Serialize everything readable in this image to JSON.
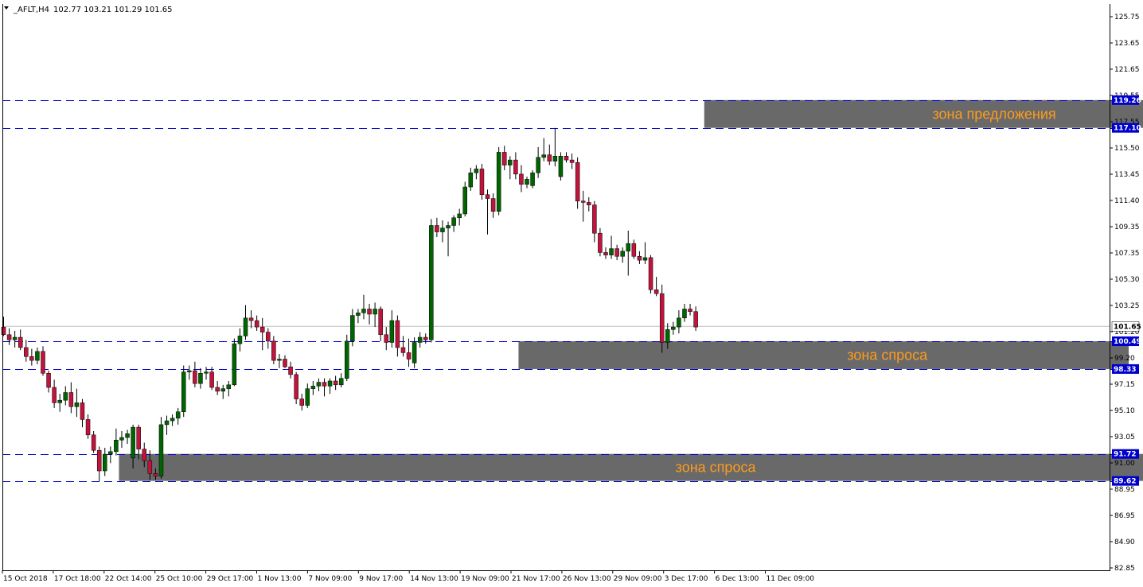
{
  "header": {
    "symbol": "_AFLT,H4",
    "ohlc": "102.77 103.21 101.29 101.65"
  },
  "colors": {
    "bull": "#006400",
    "bear": "#c0143c",
    "level": "#0000cd",
    "zone": "#696969",
    "zone_text": "#ff9c1a",
    "badge": "#0000cd",
    "axis": "#000000"
  },
  "chart_data": {
    "type": "candlestick",
    "title": "",
    "ylim": [
      82.85,
      125.75
    ],
    "y_ticks": [
      "125.75",
      "123.65",
      "121.65",
      "119.55",
      "117.55",
      "115.50",
      "113.45",
      "111.40",
      "109.35",
      "107.35",
      "105.30",
      "103.25",
      "101.20",
      "99.20",
      "97.15",
      "95.10",
      "93.05",
      "91.00",
      "88.95",
      "86.95",
      "84.90",
      "82.85"
    ],
    "x_ticks": [
      "15 Oct 2018",
      "17 Oct 18:00",
      "22 Oct 14:00",
      "25 Oct 10:00",
      "29 Oct 17:00",
      "1 Nov 13:00",
      "7 Nov 09:00",
      "9 Nov 17:00",
      "14 Nov 13:00",
      "19 Nov 09:00",
      "21 Nov 17:00",
      "26 Nov 13:00",
      "29 Nov 09:00",
      "3 Dec 17:00",
      "6 Dec 13:00",
      "11 Dec 09:00"
    ],
    "levels": [
      {
        "value": 119.26,
        "label": "119.26"
      },
      {
        "value": 117.1,
        "label": "117.10"
      },
      {
        "value": 100.49,
        "label": "100.49"
      },
      {
        "value": 98.33,
        "label": "98.33"
      },
      {
        "value": 91.72,
        "label": "91.72"
      },
      {
        "value": 89.62,
        "label": "89.62"
      }
    ],
    "current_price": {
      "value": 101.65,
      "label": "101.65"
    },
    "zones": [
      {
        "name": "supply",
        "label": "зона предложения",
        "top": 119.26,
        "bottom": 117.1,
        "start_index": 125,
        "end_index": 205
      },
      {
        "name": "demand-upper",
        "label": "зона спроса",
        "top": 100.49,
        "bottom": 98.33,
        "start_index": 92,
        "end_index": 200
      },
      {
        "name": "demand-lower",
        "label": "зона спроса",
        "top": 91.72,
        "bottom": 89.62,
        "start_index": 21,
        "end_index": 210
      }
    ],
    "candles": [
      {
        "o": 101.6,
        "h": 102.4,
        "l": 100.9,
        "c": 101.0
      },
      {
        "o": 101.0,
        "h": 101.5,
        "l": 100.2,
        "c": 100.6
      },
      {
        "o": 100.6,
        "h": 101.3,
        "l": 100.0,
        "c": 100.8
      },
      {
        "o": 100.8,
        "h": 101.4,
        "l": 99.8,
        "c": 100.0
      },
      {
        "o": 100.0,
        "h": 100.6,
        "l": 98.9,
        "c": 99.3
      },
      {
        "o": 99.3,
        "h": 99.9,
        "l": 98.6,
        "c": 99.0
      },
      {
        "o": 99.0,
        "h": 100.0,
        "l": 98.7,
        "c": 99.7
      },
      {
        "o": 99.7,
        "h": 100.1,
        "l": 97.8,
        "c": 98.0
      },
      {
        "o": 98.0,
        "h": 98.2,
        "l": 96.5,
        "c": 96.9
      },
      {
        "o": 96.9,
        "h": 97.5,
        "l": 95.3,
        "c": 95.7
      },
      {
        "o": 95.7,
        "h": 96.4,
        "l": 95.0,
        "c": 95.9
      },
      {
        "o": 95.9,
        "h": 97.0,
        "l": 95.5,
        "c": 96.5
      },
      {
        "o": 96.5,
        "h": 97.3,
        "l": 94.9,
        "c": 95.4
      },
      {
        "o": 95.4,
        "h": 96.8,
        "l": 94.6,
        "c": 95.7
      },
      {
        "o": 95.7,
        "h": 96.0,
        "l": 93.8,
        "c": 94.4
      },
      {
        "o": 94.4,
        "h": 94.8,
        "l": 92.9,
        "c": 93.2
      },
      {
        "o": 93.2,
        "h": 93.5,
        "l": 91.8,
        "c": 92.0
      },
      {
        "o": 92.0,
        "h": 92.3,
        "l": 89.6,
        "c": 90.4
      },
      {
        "o": 90.4,
        "h": 92.2,
        "l": 90.0,
        "c": 91.7
      },
      {
        "o": 91.7,
        "h": 92.3,
        "l": 91.0,
        "c": 91.9
      },
      {
        "o": 91.9,
        "h": 93.7,
        "l": 91.6,
        "c": 92.8
      },
      {
        "o": 92.8,
        "h": 93.5,
        "l": 92.2,
        "c": 93.0
      },
      {
        "o": 93.0,
        "h": 93.6,
        "l": 92.5,
        "c": 93.3
      },
      {
        "o": 91.4,
        "h": 94.0,
        "l": 90.6,
        "c": 93.8
      },
      {
        "o": 93.8,
        "h": 94.0,
        "l": 91.3,
        "c": 92.1
      },
      {
        "o": 92.1,
        "h": 92.6,
        "l": 90.7,
        "c": 91.2
      },
      {
        "o": 91.2,
        "h": 92.0,
        "l": 89.7,
        "c": 90.2
      },
      {
        "o": 90.2,
        "h": 90.6,
        "l": 89.7,
        "c": 90.0
      },
      {
        "o": 90.0,
        "h": 94.6,
        "l": 89.8,
        "c": 94.0
      },
      {
        "o": 94.0,
        "h": 94.7,
        "l": 93.2,
        "c": 94.3
      },
      {
        "o": 94.3,
        "h": 94.8,
        "l": 93.9,
        "c": 94.5
      },
      {
        "o": 94.5,
        "h": 95.3,
        "l": 94.0,
        "c": 95.0
      },
      {
        "o": 95.0,
        "h": 98.6,
        "l": 94.6,
        "c": 98.1
      },
      {
        "o": 98.1,
        "h": 98.6,
        "l": 97.5,
        "c": 98.2
      },
      {
        "o": 98.2,
        "h": 98.9,
        "l": 96.9,
        "c": 97.2
      },
      {
        "o": 97.2,
        "h": 98.4,
        "l": 96.8,
        "c": 98.0
      },
      {
        "o": 98.0,
        "h": 98.5,
        "l": 97.5,
        "c": 98.1
      },
      {
        "o": 98.1,
        "h": 98.5,
        "l": 96.7,
        "c": 96.9
      },
      {
        "o": 96.9,
        "h": 97.4,
        "l": 96.3,
        "c": 96.6
      },
      {
        "o": 96.6,
        "h": 97.1,
        "l": 96.0,
        "c": 96.8
      },
      {
        "o": 96.8,
        "h": 97.4,
        "l": 96.2,
        "c": 97.1
      },
      {
        "o": 97.1,
        "h": 100.7,
        "l": 97.0,
        "c": 100.3
      },
      {
        "o": 100.3,
        "h": 101.5,
        "l": 99.7,
        "c": 100.9
      },
      {
        "o": 100.9,
        "h": 103.3,
        "l": 100.6,
        "c": 102.3
      },
      {
        "o": 102.3,
        "h": 102.9,
        "l": 101.5,
        "c": 102.1
      },
      {
        "o": 102.1,
        "h": 102.5,
        "l": 101.3,
        "c": 101.6
      },
      {
        "o": 101.6,
        "h": 102.3,
        "l": 99.8,
        "c": 101.2
      },
      {
        "o": 101.2,
        "h": 101.5,
        "l": 99.9,
        "c": 100.5
      },
      {
        "o": 100.5,
        "h": 100.9,
        "l": 98.7,
        "c": 99.0
      },
      {
        "o": 99.0,
        "h": 99.5,
        "l": 98.4,
        "c": 99.1
      },
      {
        "o": 99.1,
        "h": 99.4,
        "l": 98.4,
        "c": 98.5
      },
      {
        "o": 98.5,
        "h": 98.9,
        "l": 97.6,
        "c": 97.9
      },
      {
        "o": 97.9,
        "h": 98.1,
        "l": 95.6,
        "c": 96.0
      },
      {
        "o": 96.0,
        "h": 96.4,
        "l": 95.1,
        "c": 95.5
      },
      {
        "o": 95.5,
        "h": 97.2,
        "l": 95.3,
        "c": 96.8
      },
      {
        "o": 96.8,
        "h": 97.4,
        "l": 96.3,
        "c": 97.0
      },
      {
        "o": 97.0,
        "h": 97.6,
        "l": 96.6,
        "c": 97.3
      },
      {
        "o": 97.3,
        "h": 97.6,
        "l": 96.2,
        "c": 97.0
      },
      {
        "o": 97.0,
        "h": 97.6,
        "l": 96.4,
        "c": 97.4
      },
      {
        "o": 97.4,
        "h": 97.8,
        "l": 96.7,
        "c": 97.1
      },
      {
        "o": 97.1,
        "h": 98.0,
        "l": 96.9,
        "c": 97.6
      },
      {
        "o": 97.6,
        "h": 101.0,
        "l": 97.4,
        "c": 100.5
      },
      {
        "o": 100.5,
        "h": 103.0,
        "l": 100.1,
        "c": 102.5
      },
      {
        "o": 102.5,
        "h": 103.0,
        "l": 101.9,
        "c": 102.7
      },
      {
        "o": 102.7,
        "h": 104.1,
        "l": 102.2,
        "c": 103.0
      },
      {
        "o": 103.0,
        "h": 103.4,
        "l": 101.8,
        "c": 102.6
      },
      {
        "o": 102.6,
        "h": 103.5,
        "l": 101.6,
        "c": 103.0
      },
      {
        "o": 103.0,
        "h": 103.2,
        "l": 100.5,
        "c": 101.0
      },
      {
        "o": 101.0,
        "h": 101.6,
        "l": 99.8,
        "c": 100.4
      },
      {
        "o": 100.4,
        "h": 102.9,
        "l": 100.0,
        "c": 102.1
      },
      {
        "o": 102.1,
        "h": 102.5,
        "l": 99.3,
        "c": 100.0
      },
      {
        "o": 100.0,
        "h": 100.9,
        "l": 99.3,
        "c": 99.6
      },
      {
        "o": 99.6,
        "h": 100.7,
        "l": 98.5,
        "c": 99.1
      },
      {
        "o": 98.8,
        "h": 100.8,
        "l": 98.4,
        "c": 100.4
      },
      {
        "o": 100.4,
        "h": 101.2,
        "l": 100.0,
        "c": 100.8
      },
      {
        "o": 100.8,
        "h": 101.1,
        "l": 100.3,
        "c": 100.6
      },
      {
        "o": 100.6,
        "h": 110.0,
        "l": 100.4,
        "c": 109.5
      },
      {
        "o": 109.5,
        "h": 110.1,
        "l": 108.6,
        "c": 109.0
      },
      {
        "o": 109.0,
        "h": 109.9,
        "l": 108.2,
        "c": 109.3
      },
      {
        "o": 109.3,
        "h": 109.8,
        "l": 107.1,
        "c": 109.5
      },
      {
        "o": 109.5,
        "h": 110.3,
        "l": 109.0,
        "c": 110.1
      },
      {
        "o": 110.1,
        "h": 110.8,
        "l": 109.5,
        "c": 110.4
      },
      {
        "o": 110.4,
        "h": 112.9,
        "l": 110.2,
        "c": 112.5
      },
      {
        "o": 112.5,
        "h": 114.0,
        "l": 112.2,
        "c": 113.6
      },
      {
        "o": 113.6,
        "h": 114.2,
        "l": 113.1,
        "c": 113.9
      },
      {
        "o": 113.9,
        "h": 114.3,
        "l": 111.5,
        "c": 111.9
      },
      {
        "o": 111.9,
        "h": 112.3,
        "l": 108.8,
        "c": 111.6
      },
      {
        "o": 111.6,
        "h": 112.0,
        "l": 110.1,
        "c": 110.6
      },
      {
        "o": 110.6,
        "h": 115.6,
        "l": 110.3,
        "c": 115.2
      },
      {
        "o": 115.2,
        "h": 115.7,
        "l": 113.8,
        "c": 114.2
      },
      {
        "o": 114.2,
        "h": 114.9,
        "l": 113.1,
        "c": 114.6
      },
      {
        "o": 114.6,
        "h": 115.2,
        "l": 113.1,
        "c": 113.5
      },
      {
        "o": 113.5,
        "h": 114.2,
        "l": 112.1,
        "c": 112.7
      },
      {
        "o": 112.7,
        "h": 113.3,
        "l": 112.4,
        "c": 113.1
      },
      {
        "o": 112.6,
        "h": 113.8,
        "l": 112.4,
        "c": 113.6
      },
      {
        "o": 113.6,
        "h": 115.6,
        "l": 113.2,
        "c": 114.8
      },
      {
        "o": 114.8,
        "h": 116.3,
        "l": 114.5,
        "c": 115.0
      },
      {
        "o": 115.0,
        "h": 115.8,
        "l": 114.2,
        "c": 114.5
      },
      {
        "o": 114.5,
        "h": 117.1,
        "l": 114.1,
        "c": 114.9
      },
      {
        "o": 113.3,
        "h": 115.2,
        "l": 113.0,
        "c": 114.9
      },
      {
        "o": 114.9,
        "h": 115.2,
        "l": 114.4,
        "c": 114.6
      },
      {
        "o": 114.6,
        "h": 115.1,
        "l": 113.9,
        "c": 114.4
      },
      {
        "o": 114.4,
        "h": 114.8,
        "l": 110.8,
        "c": 111.4
      },
      {
        "o": 111.4,
        "h": 112.2,
        "l": 109.8,
        "c": 111.3
      },
      {
        "o": 111.3,
        "h": 111.7,
        "l": 110.6,
        "c": 111.1
      },
      {
        "o": 111.1,
        "h": 111.4,
        "l": 108.2,
        "c": 108.9
      },
      {
        "o": 108.9,
        "h": 109.3,
        "l": 107.1,
        "c": 107.4
      },
      {
        "o": 107.4,
        "h": 107.8,
        "l": 106.9,
        "c": 107.2
      },
      {
        "o": 107.2,
        "h": 108.7,
        "l": 106.9,
        "c": 107.7
      },
      {
        "o": 107.7,
        "h": 108.0,
        "l": 106.8,
        "c": 107.1
      },
      {
        "o": 107.1,
        "h": 107.8,
        "l": 106.6,
        "c": 107.5
      },
      {
        "o": 107.5,
        "h": 109.1,
        "l": 105.6,
        "c": 108.1
      },
      {
        "o": 108.1,
        "h": 108.4,
        "l": 106.9,
        "c": 107.1
      },
      {
        "o": 107.1,
        "h": 107.5,
        "l": 106.5,
        "c": 106.8
      },
      {
        "o": 106.8,
        "h": 108.2,
        "l": 106.5,
        "c": 107.0
      },
      {
        "o": 107.0,
        "h": 107.2,
        "l": 104.2,
        "c": 104.5
      },
      {
        "o": 104.5,
        "h": 105.5,
        "l": 104.0,
        "c": 104.2
      },
      {
        "o": 104.2,
        "h": 104.9,
        "l": 99.6,
        "c": 100.4
      },
      {
        "o": 100.4,
        "h": 101.9,
        "l": 99.9,
        "c": 101.4
      },
      {
        "o": 101.4,
        "h": 102.0,
        "l": 101.0,
        "c": 101.6
      },
      {
        "o": 101.6,
        "h": 102.9,
        "l": 101.1,
        "c": 102.3
      },
      {
        "o": 102.3,
        "h": 103.4,
        "l": 102.0,
        "c": 103.0
      },
      {
        "o": 103.0,
        "h": 103.4,
        "l": 102.5,
        "c": 102.8
      },
      {
        "o": 102.8,
        "h": 103.2,
        "l": 101.3,
        "c": 101.6
      }
    ]
  }
}
